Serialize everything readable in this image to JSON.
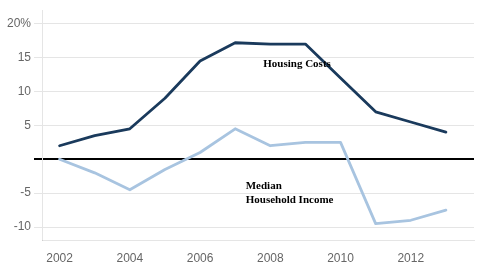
{
  "chart_data": {
    "type": "line",
    "series": [
      {
        "name": "Housing Costs",
        "color": "#1a3a5c",
        "x": [
          2002,
          2003,
          2004,
          2005,
          2006,
          2007,
          2008,
          2009,
          2010,
          2011,
          2012,
          2013
        ],
        "values": [
          2.0,
          3.5,
          4.5,
          9.0,
          14.5,
          17.2,
          17.0,
          17.0,
          12.0,
          7.0,
          5.5,
          4.0
        ]
      },
      {
        "name": "Median Household Income",
        "color": "#a8c4e0",
        "x": [
          2002,
          2003,
          2004,
          2005,
          2006,
          2007,
          2008,
          2009,
          2010,
          2011,
          2012,
          2013
        ],
        "values": [
          0.0,
          -2.0,
          -4.5,
          -1.5,
          1.0,
          4.5,
          2.0,
          2.5,
          2.5,
          -9.5,
          -9.0,
          -7.5
        ]
      }
    ],
    "annotations": [
      {
        "text": "Housing Costs",
        "x": 2007.8,
        "y": 14.0
      },
      {
        "text": "Median\nHousehold Income",
        "x": 2007.3,
        "y": -3.2
      }
    ],
    "xlim": [
      2001.5,
      2013.8
    ],
    "xticks": [
      2002,
      2004,
      2006,
      2008,
      2010,
      2012
    ],
    "ylim": [
      -12,
      22
    ],
    "yticks": [
      -10,
      -5,
      {
        "value": 0,
        "label": null
      },
      5,
      10,
      15,
      {
        "value": 20,
        "label": "20%"
      }
    ],
    "grid": "y"
  }
}
